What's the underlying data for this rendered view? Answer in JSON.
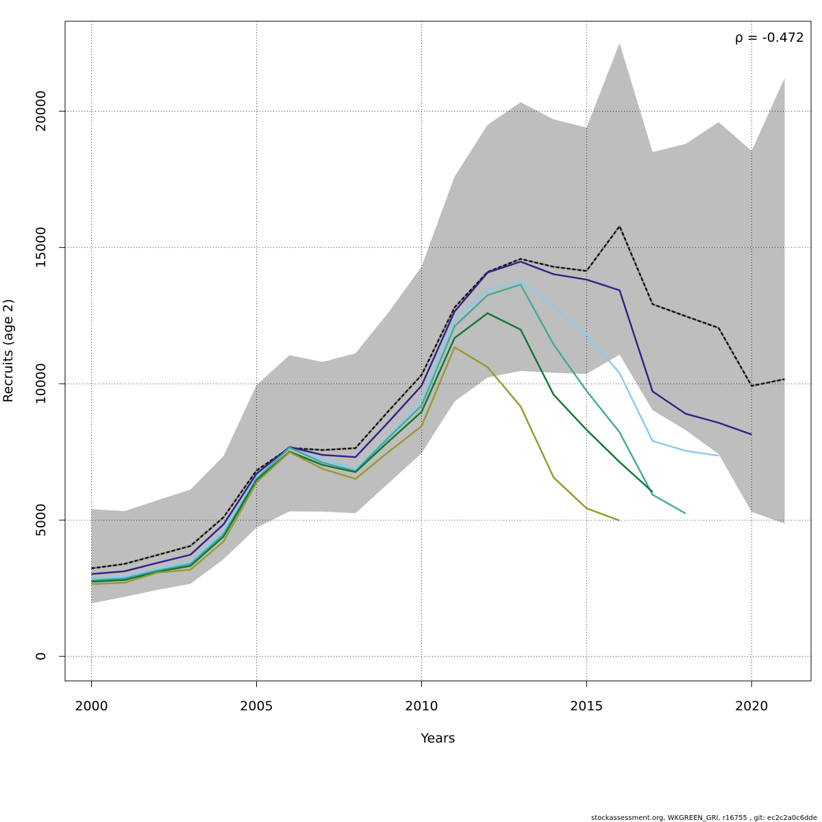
{
  "chart_data": {
    "type": "line",
    "xlabel": "Years",
    "ylabel": "Recruits (age 2)",
    "xlim": [
      1999.2,
      2021.8
    ],
    "ylim": [
      -900,
      23300
    ],
    "xticks": [
      2000,
      2005,
      2010,
      2015,
      2020
    ],
    "yticks": [
      0,
      5000,
      10000,
      15000,
      20000
    ],
    "grid": true,
    "annotation": "ρ = -0.472",
    "confidence_band": {
      "color": "#bebebe",
      "x": [
        2000,
        2001,
        2002,
        2003,
        2004,
        2005,
        2006,
        2007,
        2008,
        2009,
        2010,
        2011,
        2012,
        2013,
        2014,
        2015,
        2016,
        2017,
        2018,
        2019,
        2020,
        2021
      ],
      "upper": [
        5400,
        5330,
        5730,
        6120,
        7350,
        9950,
        11050,
        10800,
        11120,
        12620,
        14300,
        17600,
        19500,
        20330,
        19700,
        19400,
        22500,
        18500,
        18800,
        19600,
        18540,
        21220
      ],
      "lower": [
        1950,
        2180,
        2440,
        2660,
        3560,
        4720,
        5320,
        5310,
        5250,
        6350,
        7450,
        9350,
        10230,
        10470,
        10400,
        10360,
        11070,
        9030,
        8300,
        7420,
        5300,
        4870
      ]
    },
    "series": [
      {
        "color": "#333333",
        "dashed": true,
        "x": [
          2000,
          2001,
          2002,
          2003,
          2004,
          2005,
          2006,
          2007,
          2008,
          2009,
          2010,
          2011,
          2012,
          2013,
          2014,
          2015,
          2016,
          2017,
          2018,
          2019,
          2020,
          2021
        ],
        "values": [
          3230,
          3390,
          3720,
          4050,
          5100,
          6820,
          7650,
          7570,
          7640,
          9000,
          10320,
          12800,
          14100,
          14580,
          14290,
          14140,
          15780,
          12920,
          12480,
          12050,
          9920,
          10170
        ]
      },
      {
        "color": "#332288",
        "x": [
          2000,
          2001,
          2002,
          2003,
          2004,
          2005,
          2006,
          2007,
          2008,
          2009,
          2010,
          2011,
          2012,
          2013,
          2014,
          2015,
          2016,
          2017,
          2018,
          2019,
          2020
        ],
        "values": [
          3020,
          3120,
          3430,
          3730,
          4840,
          6700,
          7680,
          7390,
          7310,
          8600,
          9930,
          12650,
          14080,
          14480,
          14020,
          13820,
          13430,
          9720,
          8900,
          8570,
          8140
        ]
      },
      {
        "color": "#88ccee",
        "x": [
          2000,
          2001,
          2002,
          2003,
          2004,
          2005,
          2006,
          2007,
          2008,
          2009,
          2010,
          2011,
          2012,
          2013,
          2014,
          2015,
          2016,
          2017,
          2018,
          2019
        ],
        "values": [
          2850,
          2940,
          3220,
          3480,
          4590,
          6580,
          7630,
          7230,
          6890,
          8060,
          9460,
          12360,
          13450,
          13780,
          12820,
          11800,
          10390,
          7900,
          7540,
          7360
        ]
      },
      {
        "color": "#44aa99",
        "x": [
          2000,
          2001,
          2002,
          2003,
          2004,
          2005,
          2006,
          2007,
          2008,
          2009,
          2010,
          2011,
          2012,
          2013,
          2014,
          2015,
          2016,
          2017,
          2018
        ],
        "values": [
          2790,
          2860,
          3150,
          3390,
          4480,
          6510,
          7660,
          7110,
          6800,
          8020,
          9200,
          12110,
          13250,
          13640,
          11440,
          9740,
          8220,
          5930,
          5240
        ]
      },
      {
        "color": "#117733",
        "x": [
          2000,
          2001,
          2002,
          2003,
          2004,
          2005,
          2006,
          2007,
          2008,
          2009,
          2010,
          2011,
          2012,
          2013,
          2014,
          2015,
          2016,
          2017
        ],
        "values": [
          2740,
          2800,
          3100,
          3320,
          4390,
          6470,
          7510,
          7020,
          6760,
          7880,
          8970,
          11680,
          12590,
          11990,
          9600,
          8310,
          7130,
          6030
        ]
      },
      {
        "color": "#999933",
        "x": [
          2000,
          2001,
          2002,
          2003,
          2004,
          2005,
          2006,
          2007,
          2008,
          2009,
          2010,
          2011,
          2012,
          2013,
          2014,
          2015,
          2016
        ],
        "values": [
          2650,
          2700,
          3070,
          3180,
          4210,
          6380,
          7490,
          6880,
          6510,
          7500,
          8440,
          11340,
          10610,
          9170,
          6560,
          5430,
          4980
        ]
      }
    ]
  },
  "footer": "stockassessment.org, WKGREEN_GRI, r16755 , git: ec2c2a0c6dde"
}
